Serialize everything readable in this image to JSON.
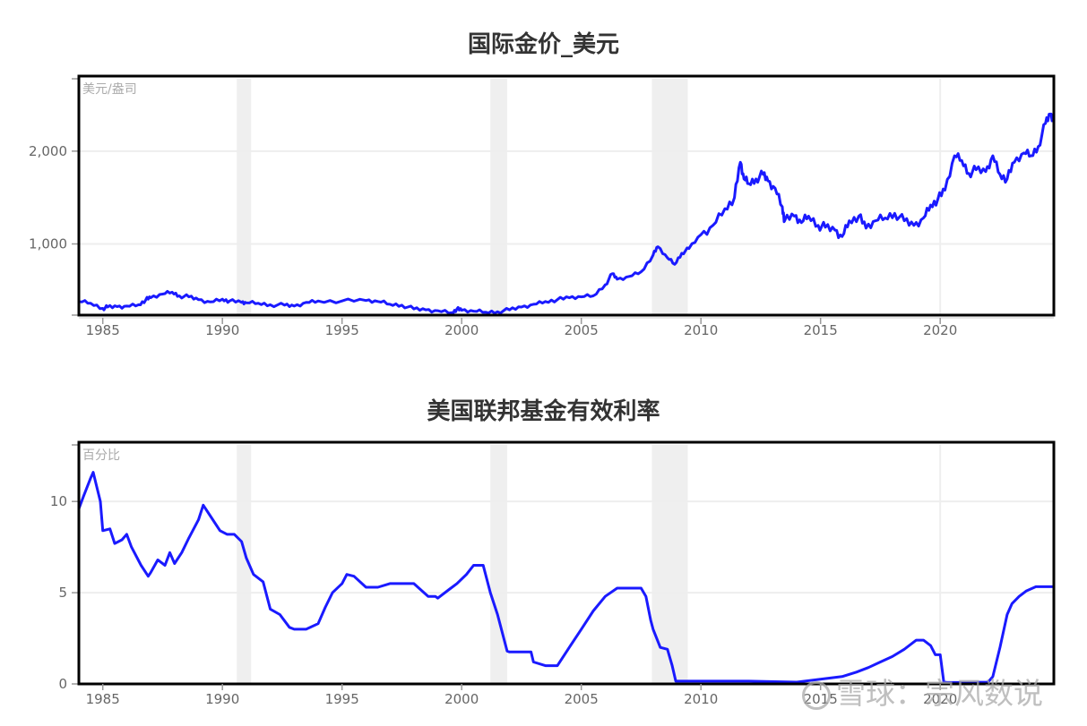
{
  "charts": [
    {
      "title": "国际金价_美元",
      "unit": "美元/盎司",
      "y_ticks": [
        "1,000",
        "2,000"
      ]
    },
    {
      "title": "美国联邦基金有效利率",
      "unit": "百分比",
      "y_ticks": [
        "0",
        "5",
        "10"
      ]
    }
  ],
  "x_ticks": [
    "1985",
    "1990",
    "1995",
    "2000",
    "2005",
    "2010",
    "2015",
    "2020"
  ],
  "watermark": "雪球：宗风数说",
  "colors": {
    "line": "#1a1aff",
    "recession": "#efefef",
    "grid": "#eeeeee",
    "frame": "#000000"
  },
  "chart_data": [
    {
      "type": "line",
      "title": "国际金价_美元",
      "xlabel": "",
      "ylabel": "美元/盎司",
      "xlim": [
        1984.0,
        2024.75
      ],
      "ylim": [
        233,
        2780
      ],
      "yticks": [
        1000,
        2000
      ],
      "xticks": [
        1985,
        1990,
        1995,
        2000,
        2005,
        2010,
        2015,
        2020
      ],
      "grid": true,
      "recession_shading": [
        [
          1990.6,
          1991.2
        ],
        [
          2001.2,
          2001.9
        ],
        [
          2007.95,
          2009.45
        ]
      ],
      "series": [
        {
          "name": "国际金价_美元",
          "x": [
            1984.0,
            1984.5,
            1985.0,
            1985.2,
            1985.6,
            1986.0,
            1986.5,
            1986.8,
            1987.0,
            1987.5,
            1987.9,
            1988.2,
            1988.6,
            1989.0,
            1989.5,
            1990.0,
            1990.3,
            1990.8,
            1991.0,
            1991.5,
            1992.0,
            1992.6,
            1993.0,
            1993.5,
            1994.0,
            1995.0,
            1996.0,
            1996.5,
            1997.0,
            1997.5,
            1998.0,
            1998.5,
            1999.0,
            1999.6,
            1999.8,
            2000.0,
            2000.5,
            2001.0,
            2001.5,
            2002.0,
            2002.5,
            2003.0,
            2003.5,
            2004.0,
            2004.5,
            2005.0,
            2005.5,
            2006.0,
            2006.3,
            2006.5,
            2007.0,
            2007.5,
            2008.0,
            2008.2,
            2008.6,
            2008.9,
            2009.2,
            2009.5,
            2010.0,
            2010.5,
            2011.0,
            2011.4,
            2011.65,
            2011.8,
            2012.0,
            2012.3,
            2012.6,
            2012.8,
            2013.1,
            2013.4,
            2013.5,
            2013.9,
            2014.2,
            2014.5,
            2014.9,
            2015.2,
            2015.6,
            2015.9,
            2016.2,
            2016.6,
            2016.9,
            2017.3,
            2017.7,
            2018.1,
            2018.5,
            2018.9,
            2019.3,
            2019.6,
            2019.9,
            2020.2,
            2020.6,
            2020.9,
            2021.2,
            2021.5,
            2021.9,
            2022.2,
            2022.5,
            2022.8,
            2023.1,
            2023.5,
            2023.8,
            2024.1,
            2024.4,
            2024.6,
            2024.75
          ],
          "values": [
            380,
            360,
            305,
            320,
            325,
            330,
            345,
            400,
            420,
            460,
            480,
            440,
            430,
            400,
            375,
            405,
            385,
            370,
            365,
            360,
            345,
            340,
            330,
            370,
            385,
            385,
            390,
            380,
            350,
            340,
            300,
            290,
            280,
            260,
            300,
            285,
            275,
            265,
            270,
            290,
            320,
            350,
            380,
            400,
            420,
            430,
            440,
            560,
            680,
            620,
            650,
            700,
            880,
            970,
            850,
            780,
            900,
            950,
            1100,
            1200,
            1380,
            1500,
            1880,
            1700,
            1650,
            1700,
            1750,
            1680,
            1600,
            1400,
            1250,
            1300,
            1230,
            1300,
            1200,
            1180,
            1150,
            1080,
            1250,
            1300,
            1170,
            1250,
            1280,
            1330,
            1250,
            1200,
            1280,
            1420,
            1480,
            1580,
            1950,
            1900,
            1760,
            1800,
            1780,
            1950,
            1750,
            1700,
            1880,
            1980,
            1950,
            2050,
            2300,
            2400,
            2350
          ]
        }
      ]
    },
    {
      "type": "line",
      "title": "美国联邦基金有效利率",
      "xlabel": "",
      "ylabel": "百分比",
      "xlim": [
        1984.0,
        2024.75
      ],
      "ylim": [
        0,
        13.1
      ],
      "yticks": [
        0,
        5,
        10
      ],
      "xticks": [
        1985,
        1990,
        1995,
        2000,
        2005,
        2010,
        2015,
        2020
      ],
      "grid": true,
      "recession_shading": [
        [
          1990.6,
          1991.2
        ],
        [
          2001.2,
          2001.9
        ],
        [
          2007.95,
          2009.45
        ]
      ],
      "series": [
        {
          "name": "美国联邦基金有效利率",
          "x": [
            1984.0,
            1984.2,
            1984.5,
            1984.6,
            1984.9,
            1985.0,
            1985.3,
            1985.5,
            1985.8,
            1986.0,
            1986.2,
            1986.6,
            1986.9,
            1987.0,
            1987.3,
            1987.6,
            1987.8,
            1988.0,
            1988.3,
            1988.6,
            1989.0,
            1989.2,
            1989.5,
            1989.9,
            1990.2,
            1990.5,
            1990.8,
            1991.0,
            1991.3,
            1991.7,
            1992.0,
            1992.4,
            1992.8,
            1993.0,
            1993.5,
            1994.0,
            1994.3,
            1994.6,
            1995.0,
            1995.2,
            1995.5,
            1996.0,
            1996.5,
            1997.0,
            1997.5,
            1998.0,
            1998.6,
            1998.9,
            1999.0,
            1999.5,
            1999.8,
            2000.2,
            2000.5,
            2000.9,
            2001.2,
            2001.5,
            2001.9,
            2002.0,
            2002.9,
            2003.0,
            2003.5,
            2004.0,
            2004.5,
            2005.0,
            2005.5,
            2006.0,
            2006.5,
            2007.0,
            2007.5,
            2007.7,
            2007.9,
            2008.0,
            2008.3,
            2008.6,
            2008.8,
            2008.95,
            2009.5,
            2010.0,
            2012.0,
            2014.0,
            2015.9,
            2016.5,
            2017.0,
            2017.5,
            2018.0,
            2018.5,
            2019.0,
            2019.3,
            2019.6,
            2019.8,
            2020.0,
            2020.15,
            2020.3,
            2021.0,
            2022.0,
            2022.2,
            2022.5,
            2022.8,
            2023.0,
            2023.3,
            2023.6,
            2024.0,
            2024.75
          ],
          "values": [
            9.6,
            10.3,
            11.3,
            11.6,
            10.0,
            8.4,
            8.5,
            7.7,
            7.9,
            8.2,
            7.5,
            6.5,
            5.9,
            6.1,
            6.8,
            6.5,
            7.2,
            6.6,
            7.2,
            8.0,
            9.0,
            9.8,
            9.2,
            8.4,
            8.2,
            8.2,
            7.8,
            6.9,
            6.0,
            5.6,
            4.1,
            3.8,
            3.1,
            3.0,
            3.0,
            3.3,
            4.2,
            5.0,
            5.5,
            6.0,
            5.9,
            5.3,
            5.3,
            5.5,
            5.5,
            5.5,
            4.8,
            4.8,
            4.7,
            5.2,
            5.5,
            6.0,
            6.5,
            6.5,
            5.0,
            3.8,
            1.8,
            1.75,
            1.75,
            1.2,
            1.0,
            1.0,
            2.0,
            3.0,
            4.0,
            4.8,
            5.25,
            5.25,
            5.25,
            4.8,
            3.5,
            3.0,
            2.0,
            1.9,
            1.0,
            0.15,
            0.15,
            0.15,
            0.15,
            0.1,
            0.4,
            0.65,
            0.9,
            1.2,
            1.5,
            1.9,
            2.4,
            2.4,
            2.1,
            1.6,
            1.6,
            0.1,
            0.08,
            0.08,
            0.1,
            0.4,
            2.0,
            3.8,
            4.4,
            4.8,
            5.1,
            5.33,
            5.33
          ]
        }
      ]
    }
  ]
}
